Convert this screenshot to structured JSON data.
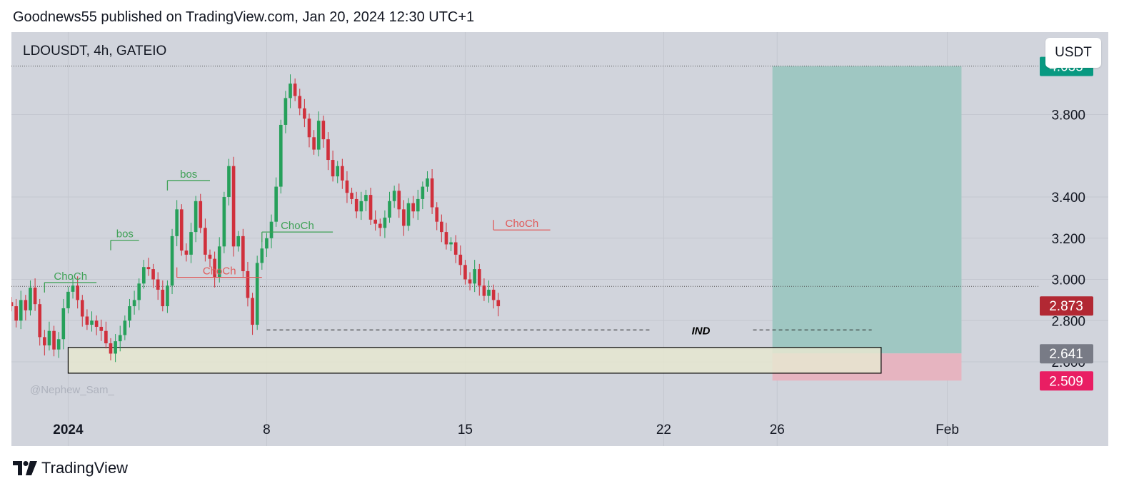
{
  "header": {
    "published_text": "Goodnews55 published on TradingView.com, Jan 20, 2024 12:30 UTC+1"
  },
  "chart_header": {
    "symbol": "LDOUSDT, 4h, GATEIO",
    "currency_button": "USDT",
    "watermark": "@Nephew_Sam_"
  },
  "footer": {
    "brand": "TradingView"
  },
  "colors": {
    "background": "#d1d4dc",
    "up_candle": "#26a05a",
    "down_candle": "#d0303c",
    "target_zone": "#9fc7c2",
    "stop_zone": "#e6b4c0",
    "demand_zone": "#e6e6d0",
    "target_badge": "#089981",
    "current_badge": "#b22833",
    "entry_badge": "#787b86",
    "stop_badge": "#e91e63",
    "annotation_green": "#3fa156",
    "annotation_red": "#e05a5a"
  },
  "chart_data": {
    "type": "candlestick",
    "symbol": "LDOUSDT",
    "timeframe": "4h",
    "exchange": "GATEIO",
    "ylim": [
      2.33,
      4.2
    ],
    "yticks": [
      "3.800",
      "3.400",
      "3.200",
      "3.000",
      "2.800",
      "2.600"
    ],
    "xlim": [
      "2023-12-30",
      "2024-02-03"
    ],
    "xticks": [
      {
        "label": "2024",
        "date": "2024-01-01",
        "bold": true
      },
      {
        "label": "8",
        "date": "2024-01-08",
        "bold": false
      },
      {
        "label": "15",
        "date": "2024-01-15",
        "bold": false
      },
      {
        "label": "22",
        "date": "2024-01-22",
        "bold": false
      },
      {
        "label": "26",
        "date": "2024-01-26",
        "bold": false
      },
      {
        "label": "Feb",
        "date": "2024-02-01",
        "bold": false
      }
    ],
    "grid": true,
    "price_badges": [
      {
        "name": "target",
        "value": "4.035",
        "price": 4.035,
        "color": "#089981"
      },
      {
        "name": "current",
        "value": "2.873",
        "price": 2.873,
        "color": "#b22833"
      },
      {
        "name": "entry",
        "value": "2.641",
        "price": 2.641,
        "color": "#787b86"
      },
      {
        "name": "stop",
        "value": "2.509",
        "price": 2.509,
        "color": "#e91e63"
      }
    ],
    "close_prices": [
      2.87,
      2.8,
      2.9,
      2.85,
      2.96,
      2.88,
      2.72,
      2.68,
      2.75,
      2.66,
      2.71,
      2.86,
      2.94,
      2.97,
      2.9,
      2.82,
      2.78,
      2.8,
      2.77,
      2.75,
      2.69,
      2.64,
      2.7,
      2.73,
      2.8,
      2.87,
      2.9,
      2.98,
      3.06,
      3.05,
      3.0,
      2.95,
      2.87,
      2.97,
      3.21,
      3.34,
      3.14,
      3.12,
      3.23,
      3.38,
      3.25,
      3.12,
      3.1,
      3.01,
      3.16,
      3.4,
      3.55,
      3.16,
      3.21,
      3.04,
      2.91,
      2.78,
      3.08,
      3.15,
      3.2,
      3.28,
      3.45,
      3.75,
      3.88,
      3.95,
      3.89,
      3.83,
      3.78,
      3.69,
      3.63,
      3.77,
      3.68,
      3.58,
      3.5,
      3.55,
      3.48,
      3.42,
      3.39,
      3.33,
      3.38,
      3.41,
      3.29,
      3.27,
      3.25,
      3.3,
      3.38,
      3.43,
      3.34,
      3.26,
      3.37,
      3.33,
      3.39,
      3.45,
      3.49,
      3.35,
      3.28,
      3.23,
      3.17,
      3.18,
      3.12,
      3.07,
      3.0,
      2.98,
      3.05,
      2.97,
      2.92,
      2.95,
      2.9,
      2.87
    ],
    "start_date": "2023-12-30T00:00",
    "bar_hours": 4,
    "trade_setup": {
      "type": "long-position",
      "start": "2024-01-25T20:00",
      "end": "2024-02-01T12:00",
      "target": 4.035,
      "entry": 2.641,
      "stop": 2.509
    },
    "zones": [
      {
        "name": "demand-zone",
        "start": "2024-01-01T00:00",
        "end": "2024-01-29T16:00",
        "top": 2.67,
        "bottom": 2.545
      }
    ],
    "annotations": [
      {
        "text": "ChoCh",
        "color": "green",
        "start": "2023-12-31T04:00",
        "end": "2024-01-02T00:00",
        "price": 2.985
      },
      {
        "text": "bos",
        "color": "green",
        "start": "2024-01-02T12:00",
        "end": "2024-01-03T12:00",
        "price": 3.19
      },
      {
        "text": "bos",
        "color": "green",
        "start": "2024-01-04T12:00",
        "end": "2024-01-06T00:00",
        "price": 3.48
      },
      {
        "text": "ChoCh",
        "color": "red",
        "start": "2024-01-04T20:00",
        "end": "2024-01-07T20:00",
        "price": 3.01
      },
      {
        "text": "ChoCh",
        "color": "green",
        "start": "2024-01-07T20:00",
        "end": "2024-01-10T08:00",
        "price": 3.23
      },
      {
        "text": "ChoCh",
        "color": "red",
        "start": "2024-01-16T00:00",
        "end": "2024-01-18T00:00",
        "price": 3.24
      },
      {
        "text": "IND",
        "color": "black",
        "price": 2.755
      }
    ]
  }
}
